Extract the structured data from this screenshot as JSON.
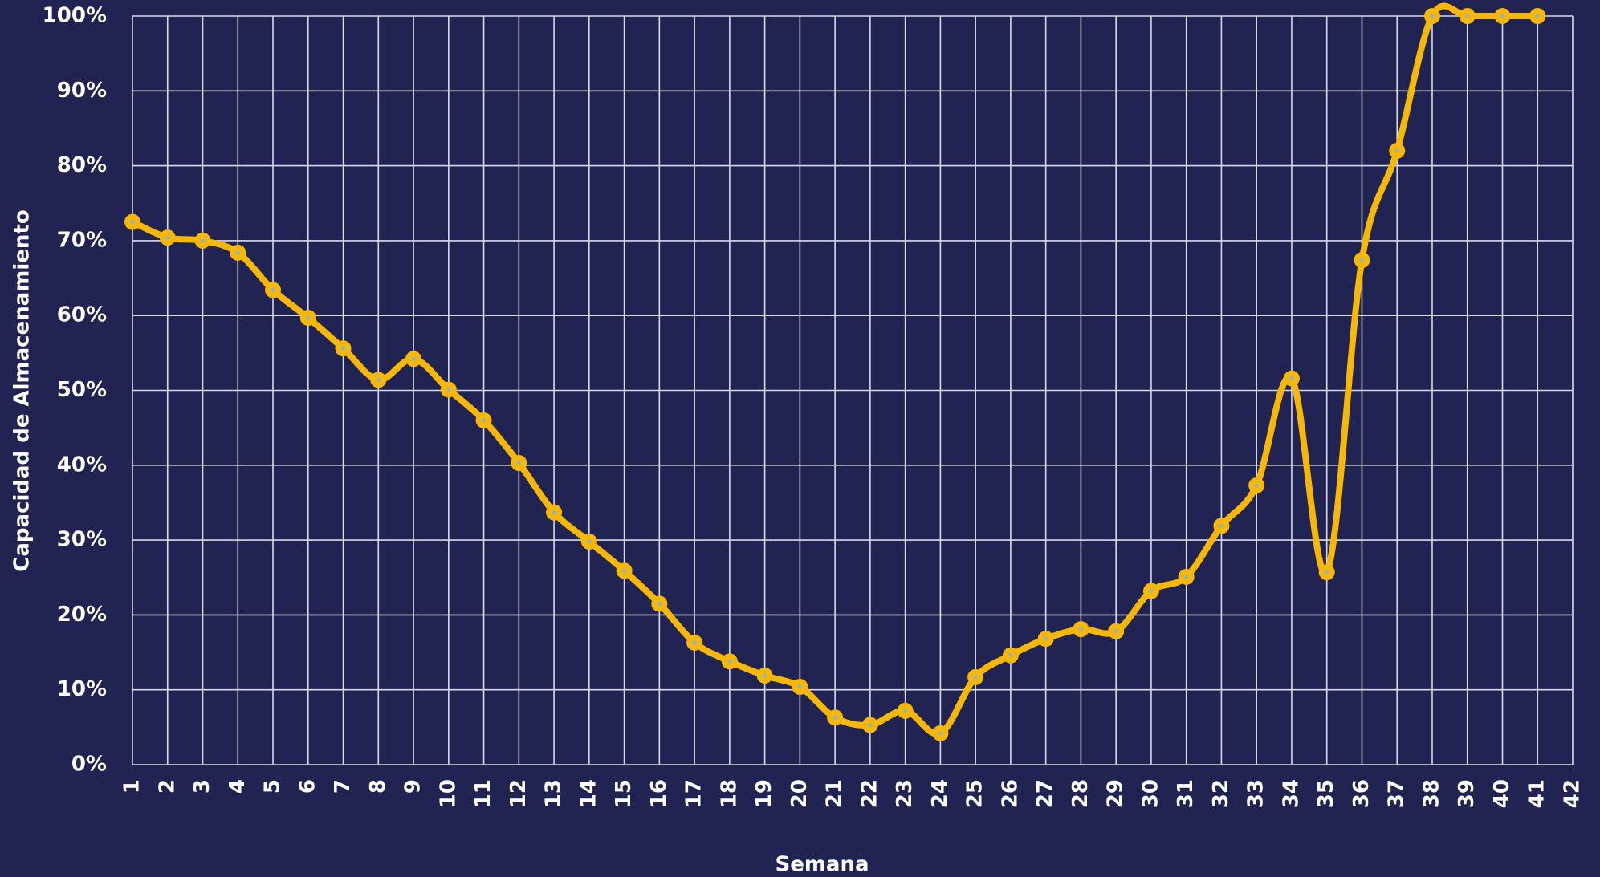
{
  "chart_data": {
    "type": "line",
    "x_label": "Semana",
    "y_label": "Capacidad de Almacenamiento",
    "x": [
      1,
      2,
      3,
      4,
      5,
      6,
      7,
      8,
      9,
      10,
      11,
      12,
      13,
      14,
      15,
      16,
      17,
      18,
      19,
      20,
      21,
      22,
      23,
      24,
      25,
      26,
      27,
      28,
      29,
      30,
      31,
      32,
      33,
      34,
      35,
      36,
      37,
      38,
      39,
      40,
      41
    ],
    "series": [
      {
        "color": "#f5b70a",
        "values": [
          72.5,
          70.4,
          70.0,
          68.4,
          63.4,
          59.7,
          55.6,
          51.4,
          54.2,
          50.1,
          46.0,
          40.3,
          33.7,
          29.8,
          25.9,
          21.5,
          16.3,
          13.8,
          11.9,
          10.4,
          6.3,
          5.3,
          7.2,
          4.2,
          11.7,
          14.6,
          16.8,
          18.1,
          17.8,
          23.2,
          25.1,
          31.9,
          37.3,
          51.6,
          25.7,
          67.4,
          82.0,
          100,
          100,
          100,
          100
        ]
      }
    ],
    "xlim": [
      1,
      42
    ],
    "xticks": [
      1,
      2,
      3,
      4,
      5,
      6,
      7,
      8,
      9,
      10,
      11,
      12,
      13,
      14,
      15,
      16,
      17,
      18,
      19,
      20,
      21,
      22,
      23,
      24,
      25,
      26,
      27,
      28,
      29,
      30,
      31,
      32,
      33,
      34,
      35,
      36,
      37,
      38,
      39,
      40,
      41,
      42
    ],
    "ylim": [
      0,
      100
    ],
    "yticks": [
      {
        "value": 0,
        "label": "0%"
      },
      {
        "value": 10,
        "label": "10%"
      },
      {
        "value": 20,
        "label": "20%"
      },
      {
        "value": 30,
        "label": "30%"
      },
      {
        "value": 40,
        "label": "40%"
      },
      {
        "value": 50,
        "label": "50%"
      },
      {
        "value": 60,
        "label": "60%"
      },
      {
        "value": 70,
        "label": "70%"
      },
      {
        "value": 80,
        "label": "80%"
      },
      {
        "value": 90,
        "label": "90%"
      },
      {
        "value": 100,
        "label": "100%"
      }
    ],
    "grid": true,
    "smooth": true
  }
}
